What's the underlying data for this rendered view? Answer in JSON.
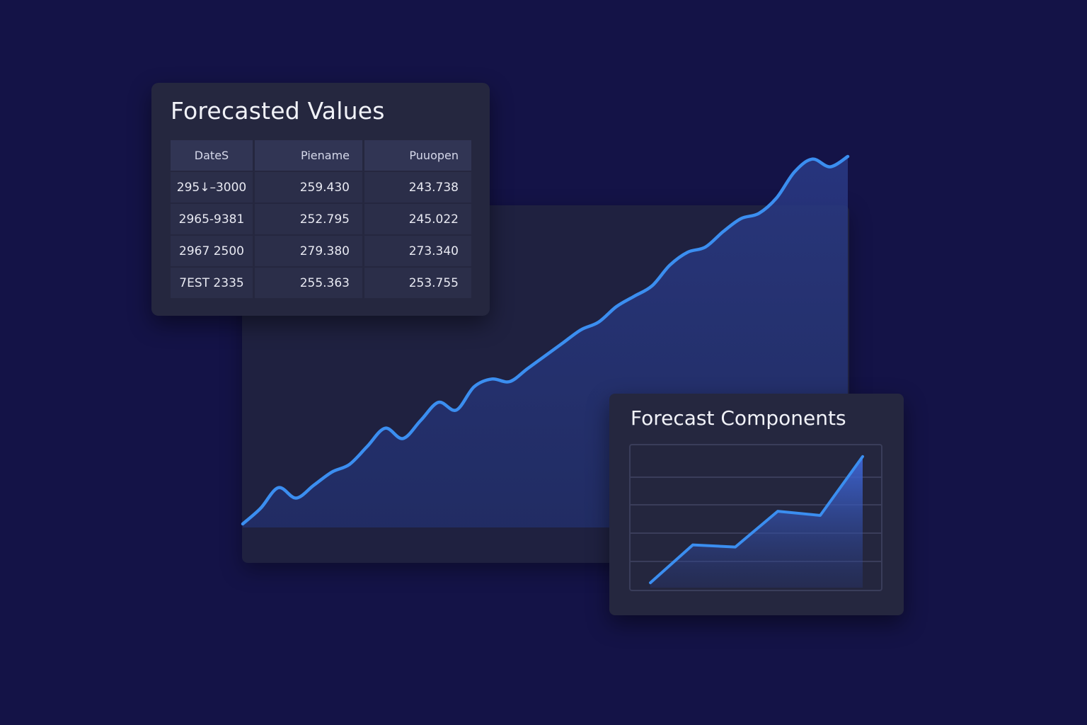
{
  "colors": {
    "background": "#141347",
    "panel": "#1f2140",
    "card": "#25273f",
    "table_header": "#313554",
    "table_cell": "#2b2e49",
    "line": "#3b8ef0",
    "area": "#2e4592",
    "grid": "#3a3d5a"
  },
  "forecast_table": {
    "title": "Forecasted Values",
    "headers": [
      "DateS",
      "Piename",
      "Puuopen"
    ],
    "rows": [
      [
        "295↓–3000",
        "259.430",
        "243.738"
      ],
      [
        "2965-9381",
        "252.795",
        "245.022"
      ],
      [
        "2967 2500",
        "279.380",
        "273.340"
      ],
      [
        "7EST 2335",
        "255.363",
        "253.755"
      ]
    ]
  },
  "components_card": {
    "title": "Forecast Components"
  },
  "chart_data": [
    {
      "type": "area",
      "title": "",
      "xlabel": "",
      "ylabel": "",
      "grid": false,
      "x": [
        0,
        1,
        2,
        3,
        4,
        5,
        6,
        7,
        8,
        9,
        10,
        11,
        12,
        13,
        14,
        15,
        16,
        17,
        18,
        19,
        20,
        21,
        22,
        23,
        24,
        25,
        26,
        27,
        28,
        29,
        30,
        31,
        32,
        33,
        34
      ],
      "values": [
        0,
        6,
        14,
        10,
        15,
        20,
        23,
        30,
        37,
        33,
        40,
        47,
        44,
        53,
        56,
        55,
        60,
        65,
        70,
        75,
        78,
        84,
        88,
        92,
        100,
        105,
        107,
        113,
        118,
        120,
        126,
        136,
        141,
        138,
        142
      ],
      "xlim": [
        0,
        34
      ],
      "ylim": [
        0,
        142
      ]
    },
    {
      "type": "area",
      "title": "",
      "xlabel": "",
      "ylabel": "",
      "grid": true,
      "x": [
        0,
        1,
        2,
        3,
        4,
        5
      ],
      "values": [
        4,
        22,
        21,
        38,
        36,
        64
      ],
      "ylim": [
        0,
        70
      ]
    }
  ]
}
